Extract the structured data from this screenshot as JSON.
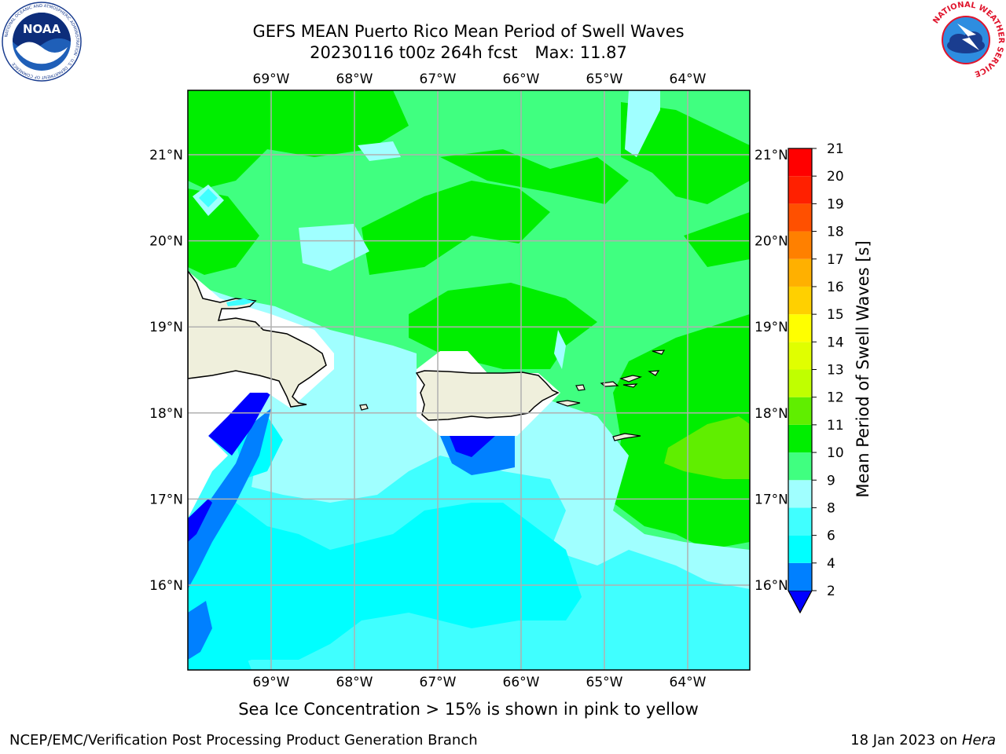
{
  "header": {
    "title_line1": "GEFS MEAN Puerto Rico Mean Period of Swell Waves",
    "title_date": "20230116 t00z 264h fcst",
    "title_max": "Max: 11.87"
  },
  "logos": {
    "noaa": {
      "text": "NOAA",
      "ring_text": "NATIONAL OCEANIC AND ATMOSPHERIC ADMINISTRATION · U.S. DEPARTMENT OF COMMERCE"
    },
    "nws": {
      "ring_text": "NATIONAL WEATHER SERVICE"
    }
  },
  "map": {
    "lon_labels": [
      "69°W",
      "68°W",
      "67°W",
      "66°W",
      "65°W",
      "64°W"
    ],
    "lat_labels": [
      "21°N",
      "20°N",
      "19°N",
      "18°N",
      "17°N",
      "16°N"
    ]
  },
  "colorbar": {
    "title": "Mean Period of Swell Waves [s]",
    "ticks": [
      "2",
      "4",
      "6",
      "8",
      "9",
      "10",
      "11",
      "12",
      "13",
      "14",
      "15",
      "16",
      "17",
      "18",
      "19",
      "20",
      "21"
    ],
    "colors": [
      "#0000ff",
      "#0080ff",
      "#00ffff",
      "#40ffff",
      "#a0ffff",
      "#40ff80",
      "#00ee00",
      "#60ee00",
      "#c0ff00",
      "#e0ff00",
      "#ffff00",
      "#ffd000",
      "#ffb000",
      "#ff8000",
      "#ff5000",
      "#ff2000",
      "#ff0000"
    ]
  },
  "footer": {
    "note": "Sea Ice Concentration > 15% is shown in pink to yellow",
    "branch": "NCEP/EMC/Verification Post Processing Product Generation Branch",
    "date": "18 Jan 2023",
    "on": "on",
    "host": "Hera"
  },
  "colors": {
    "land": "#efefdc",
    "grid": "#b0b0b0"
  }
}
